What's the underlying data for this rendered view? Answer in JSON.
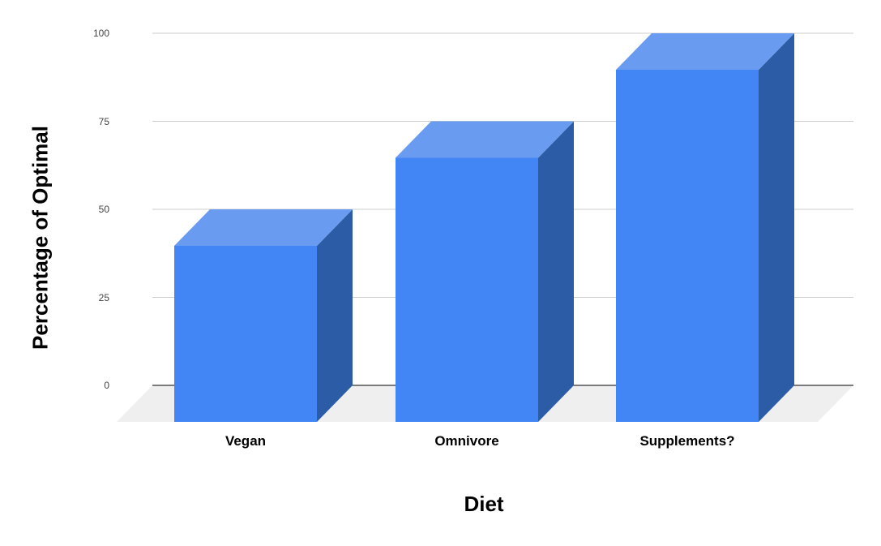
{
  "chart_data": {
    "type": "bar",
    "projection": "3d",
    "categories": [
      "Vegan",
      "Omnivore",
      "Supplements?"
    ],
    "values": [
      50,
      75,
      100
    ],
    "title": "",
    "xlabel": "Diet",
    "ylabel": "Percentage of Optimal",
    "yticks": [
      0,
      25,
      50,
      75,
      100
    ],
    "ylim": [
      0,
      100
    ],
    "grid": true,
    "legend": "none",
    "colors": {
      "bar_front": "#4285f4",
      "bar_top": "#699cf1",
      "bar_side": "#2d5ca7",
      "floor": "#efefef",
      "gridline": "#cccccc",
      "axis_line": "#000000",
      "tick_text": "#444444",
      "category_text": "#000000",
      "axis_title_text": "#000000",
      "background": "#ffffff"
    }
  }
}
